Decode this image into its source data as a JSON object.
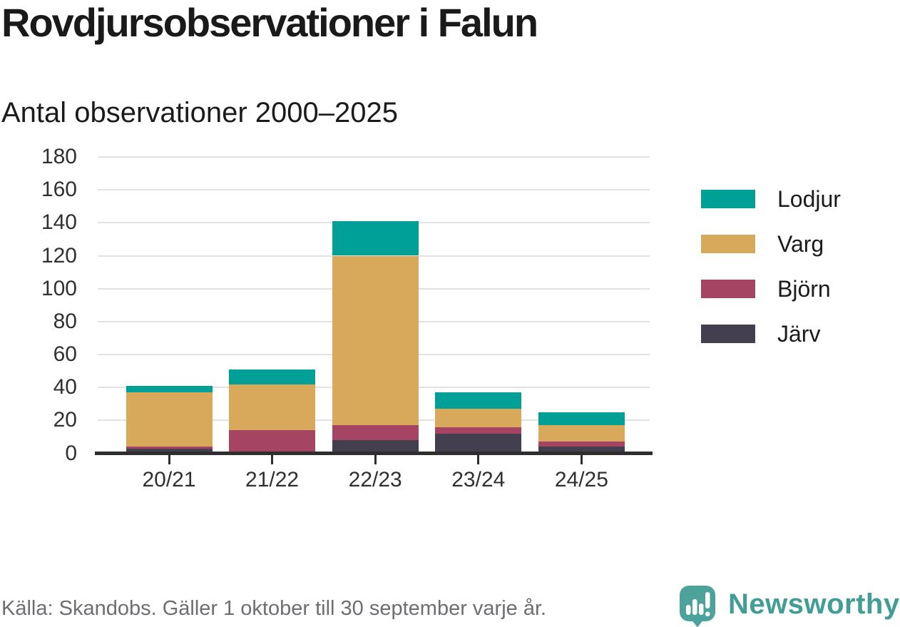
{
  "chart_data": {
    "type": "bar",
    "stacked": true,
    "title": "Rovdjursobservationer i Falun",
    "subtitle": "Antal observationer 2000–2025",
    "categories": [
      "20/21",
      "21/22",
      "22/23",
      "23/24",
      "24/25"
    ],
    "series": [
      {
        "name": "Järv",
        "color": "#433f4e",
        "values": [
          3,
          0,
          8,
          12,
          4
        ]
      },
      {
        "name": "Björn",
        "color": "#a64563",
        "values": [
          1,
          14,
          9,
          4,
          3
        ]
      },
      {
        "name": "Varg",
        "color": "#d9a95b",
        "values": [
          33,
          28,
          103,
          11,
          10
        ]
      },
      {
        "name": "Lodjur",
        "color": "#00a096",
        "values": [
          4,
          9,
          21,
          10,
          8
        ]
      }
    ],
    "totals": [
      41,
      51,
      141,
      37,
      25
    ],
    "legend_order": [
      "Lodjur",
      "Varg",
      "Björn",
      "Järv"
    ],
    "legend_position": "right",
    "xlabel": "",
    "ylabel": "",
    "ylim": [
      0,
      180
    ],
    "yticks": [
      0,
      20,
      40,
      60,
      80,
      100,
      120,
      140,
      160,
      180
    ],
    "grid": "horizontal"
  },
  "footer": {
    "source": "Källa: Skandobs. Gäller 1 oktober till 30 september varje år.",
    "brand": "Newsworthy"
  },
  "colors": {
    "axis": "#2e2e2e",
    "grid": "#e2e2e2",
    "title_text": "#1a1a1a",
    "tick_text": "#303030",
    "source_text": "#6d6d73",
    "brand_teal": "#429d96",
    "logo_fill": "#4ba39c"
  }
}
